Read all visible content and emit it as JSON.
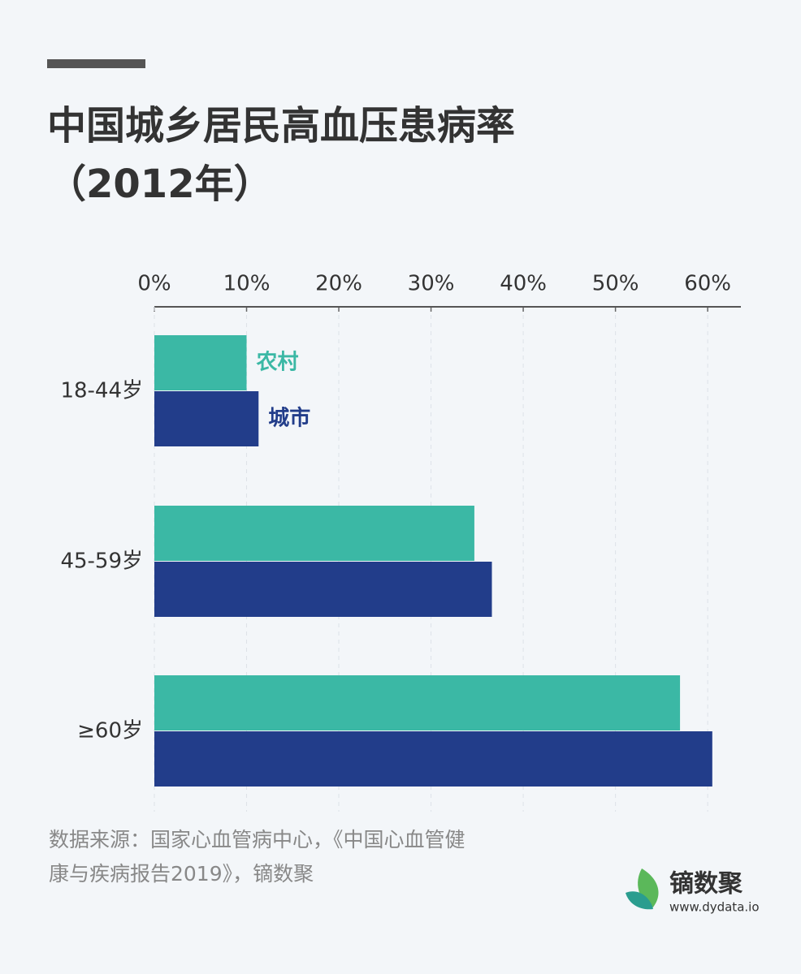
{
  "chart_data": {
    "type": "hbar",
    "title": [
      "中国城乡居民高血压患病率",
      "（2012年）"
    ],
    "categories": [
      "18-44岁",
      "45-59岁",
      "≥60岁"
    ],
    "series": [
      {
        "name": "农村",
        "color": "#3bb8a5",
        "values": [
          10.0,
          34.7,
          57.0
        ]
      },
      {
        "name": "城市",
        "color": "#223d8a",
        "values": [
          11.3,
          36.6,
          60.5
        ]
      }
    ],
    "xlim": [
      0,
      63.6
    ],
    "xticks": [
      {
        "value": 0,
        "label": "0%"
      },
      {
        "value": 10,
        "label": "10%"
      },
      {
        "value": 20,
        "label": "20%"
      },
      {
        "value": 30,
        "label": "30%"
      },
      {
        "value": 40,
        "label": "40%"
      },
      {
        "value": 50,
        "label": "50%"
      },
      {
        "value": 60,
        "label": "60%"
      }
    ],
    "grid": true,
    "source": [
      "数据来源：国家心血管病中心，《中国心血管健",
      "康与疾病报告2019》，镝数聚"
    ]
  },
  "logo": {
    "name": "镝数聚",
    "url": "www.dydata.io"
  }
}
